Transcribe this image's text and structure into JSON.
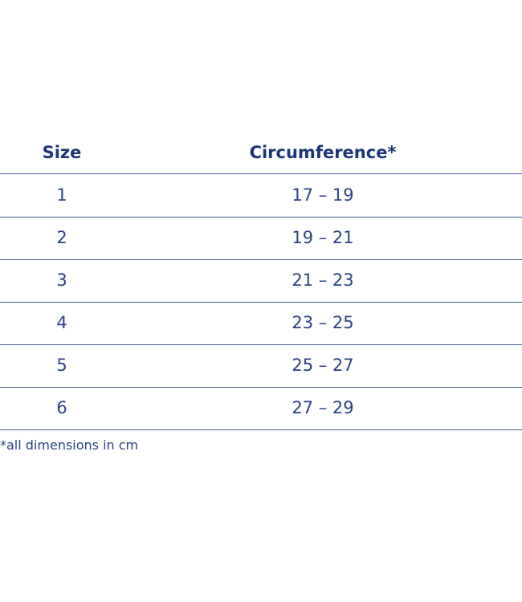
{
  "table": {
    "header": [
      "Size",
      "Circumference*"
    ],
    "rows": [
      [
        "1",
        "17 – 19"
      ],
      [
        "2",
        "19 – 21"
      ],
      [
        "3",
        "21 – 23"
      ],
      [
        "4",
        "23 – 25"
      ],
      [
        "5",
        "25 – 27"
      ],
      [
        "6",
        "27 – 29"
      ]
    ]
  },
  "footnote": "*all dimensions in cm"
}
